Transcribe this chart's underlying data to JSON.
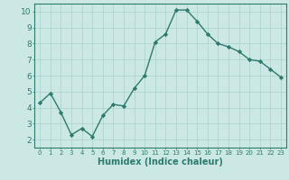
{
  "x": [
    0,
    1,
    2,
    3,
    4,
    5,
    6,
    7,
    8,
    9,
    10,
    11,
    12,
    13,
    14,
    15,
    16,
    17,
    18,
    19,
    20,
    21,
    22,
    23
  ],
  "y": [
    4.3,
    4.9,
    3.7,
    2.3,
    2.7,
    2.2,
    3.5,
    4.2,
    4.1,
    5.2,
    6.0,
    8.1,
    8.6,
    10.1,
    10.1,
    9.4,
    8.6,
    8.0,
    7.8,
    7.5,
    7.0,
    6.9,
    6.4,
    5.9
  ],
  "line_color": "#2d7a6e",
  "marker": "D",
  "marker_size": 2.2,
  "bg_color": "#cce8e4",
  "grid_color": "#afd4cf",
  "xlabel": "Humidex (Indice chaleur)",
  "xlim": [
    -0.5,
    23.5
  ],
  "ylim": [
    1.5,
    10.5
  ],
  "yticks": [
    2,
    3,
    4,
    5,
    6,
    7,
    8,
    9,
    10
  ],
  "xticks": [
    0,
    1,
    2,
    3,
    4,
    5,
    6,
    7,
    8,
    9,
    10,
    11,
    12,
    13,
    14,
    15,
    16,
    17,
    18,
    19,
    20,
    21,
    22,
    23
  ],
  "axis_color": "#2d7a6e",
  "tick_label_color": "#2d7a6e",
  "xlabel_color": "#2d7a6e",
  "xlabel_fontsize": 7,
  "tick_fontsize_x": 5,
  "tick_fontsize_y": 6.5,
  "linewidth": 1.0
}
